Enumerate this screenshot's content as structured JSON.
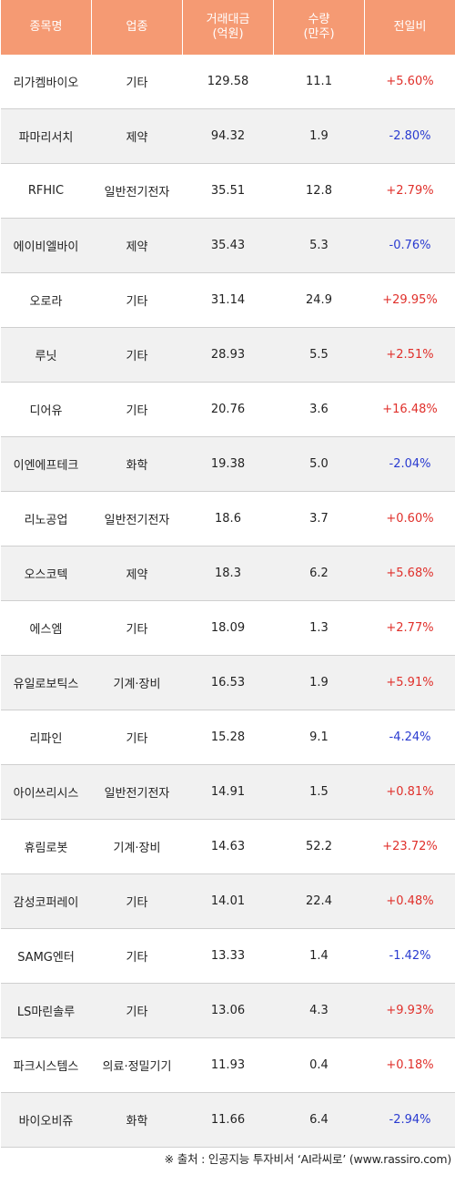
{
  "headers": {
    "name": "종목명",
    "sector": "업종",
    "amount_line1": "거래대금",
    "amount_line2": "(억원)",
    "volume_line1": "수량",
    "volume_line2": "(만주)",
    "change": "전일비"
  },
  "rows": [
    {
      "name": "리가켐바이오",
      "sector": "기타",
      "amount": "129.58",
      "volume": "11.1",
      "change": "+5.60%",
      "dir": "up"
    },
    {
      "name": "파마리서치",
      "sector": "제약",
      "amount": "94.32",
      "volume": "1.9",
      "change": "-2.80%",
      "dir": "down"
    },
    {
      "name": "RFHIC",
      "sector": "일반전기전자",
      "amount": "35.51",
      "volume": "12.8",
      "change": "+2.79%",
      "dir": "up"
    },
    {
      "name": "에이비엘바이",
      "sector": "제약",
      "amount": "35.43",
      "volume": "5.3",
      "change": "-0.76%",
      "dir": "down"
    },
    {
      "name": "오로라",
      "sector": "기타",
      "amount": "31.14",
      "volume": "24.9",
      "change": "+29.95%",
      "dir": "up"
    },
    {
      "name": "루닛",
      "sector": "기타",
      "amount": "28.93",
      "volume": "5.5",
      "change": "+2.51%",
      "dir": "up"
    },
    {
      "name": "디어유",
      "sector": "기타",
      "amount": "20.76",
      "volume": "3.6",
      "change": "+16.48%",
      "dir": "up"
    },
    {
      "name": "이엔에프테크",
      "sector": "화학",
      "amount": "19.38",
      "volume": "5.0",
      "change": "-2.04%",
      "dir": "down"
    },
    {
      "name": "리노공업",
      "sector": "일반전기전자",
      "amount": "18.6",
      "volume": "3.7",
      "change": "+0.60%",
      "dir": "up"
    },
    {
      "name": "오스코텍",
      "sector": "제약",
      "amount": "18.3",
      "volume": "6.2",
      "change": "+5.68%",
      "dir": "up"
    },
    {
      "name": "에스엠",
      "sector": "기타",
      "amount": "18.09",
      "volume": "1.3",
      "change": "+2.77%",
      "dir": "up"
    },
    {
      "name": "유일로보틱스",
      "sector": "기계·장비",
      "amount": "16.53",
      "volume": "1.9",
      "change": "+5.91%",
      "dir": "up"
    },
    {
      "name": "리파인",
      "sector": "기타",
      "amount": "15.28",
      "volume": "9.1",
      "change": "-4.24%",
      "dir": "down"
    },
    {
      "name": "아이쓰리시스",
      "sector": "일반전기전자",
      "amount": "14.91",
      "volume": "1.5",
      "change": "+0.81%",
      "dir": "up"
    },
    {
      "name": "휴림로봇",
      "sector": "기계·장비",
      "amount": "14.63",
      "volume": "52.2",
      "change": "+23.72%",
      "dir": "up"
    },
    {
      "name": "감성코퍼레이",
      "sector": "기타",
      "amount": "14.01",
      "volume": "22.4",
      "change": "+0.48%",
      "dir": "up"
    },
    {
      "name": "SAMG엔터",
      "sector": "기타",
      "amount": "13.33",
      "volume": "1.4",
      "change": "-1.42%",
      "dir": "down"
    },
    {
      "name": "LS마린솔루",
      "sector": "기타",
      "amount": "13.06",
      "volume": "4.3",
      "change": "+9.93%",
      "dir": "up"
    },
    {
      "name": "파크시스템스",
      "sector": "의료·정밀기기",
      "amount": "11.93",
      "volume": "0.4",
      "change": "+0.18%",
      "dir": "up"
    },
    {
      "name": "바이오비쥬",
      "sector": "화학",
      "amount": "11.66",
      "volume": "6.4",
      "change": "-2.94%",
      "dir": "down"
    }
  ],
  "footer": "※ 출처 : 인공지능 투자비서 ‘AI라씨로’ (www.rassiro.com)",
  "colors": {
    "header_bg": "#f59a73",
    "up": "#e0302b",
    "down": "#2a3bd0",
    "alt_row": "#f1f1f1"
  }
}
